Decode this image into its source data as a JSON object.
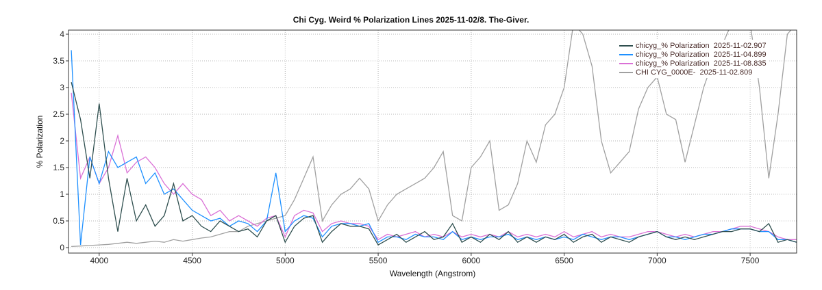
{
  "chart_data": {
    "type": "line",
    "title": "Chi Cyg. Weird % Polarization Lines 2025-11-02/8. The-Giver.",
    "xlabel": "Wavelength (Angstrom)",
    "ylabel": "% Polarization",
    "xlim": [
      3835,
      7750
    ],
    "ylim": [
      0,
      4
    ],
    "grid": true,
    "legend_position": "top-right",
    "x_ticks": [
      "4000",
      "4500",
      "5000",
      "5500",
      "6000",
      "6500",
      "7000",
      "7500"
    ],
    "y_ticks": [
      "0",
      "0.5",
      "1",
      "1.5",
      "2",
      "2.5",
      "3",
      "3.5",
      "4"
    ],
    "x": [
      3850,
      3900,
      3950,
      4000,
      4050,
      4100,
      4150,
      4200,
      4250,
      4300,
      4350,
      4400,
      4450,
      4500,
      4550,
      4600,
      4650,
      4700,
      4750,
      4800,
      4850,
      4900,
      4950,
      5000,
      5050,
      5100,
      5150,
      5200,
      5250,
      5300,
      5350,
      5400,
      5450,
      5500,
      5550,
      5600,
      5650,
      5700,
      5750,
      5800,
      5850,
      5900,
      5950,
      6000,
      6050,
      6100,
      6150,
      6200,
      6250,
      6300,
      6350,
      6400,
      6450,
      6500,
      6550,
      6600,
      6650,
      6700,
      6750,
      6800,
      6850,
      6900,
      6950,
      7000,
      7050,
      7100,
      7150,
      7200,
      7250,
      7300,
      7350,
      7400,
      7450,
      7500,
      7550,
      7600,
      7650,
      7700,
      7750
    ],
    "series": [
      {
        "name": "chicyg_% Polarization  2025-11-02.907",
        "color": "#2f4f4f",
        "values": [
          3.1,
          2.4,
          1.3,
          2.7,
          1.3,
          0.3,
          1.3,
          0.5,
          0.8,
          0.4,
          0.6,
          1.2,
          0.5,
          0.6,
          0.4,
          0.3,
          0.5,
          0.4,
          0.3,
          0.35,
          0.2,
          0.5,
          0.6,
          0.1,
          0.4,
          0.55,
          0.6,
          0.1,
          0.3,
          0.45,
          0.4,
          0.4,
          0.35,
          0.05,
          0.15,
          0.25,
          0.1,
          0.2,
          0.3,
          0.15,
          0.2,
          0.45,
          0.1,
          0.2,
          0.1,
          0.25,
          0.15,
          0.3,
          0.1,
          0.2,
          0.1,
          0.2,
          0.15,
          0.25,
          0.1,
          0.2,
          0.25,
          0.1,
          0.2,
          0.15,
          0.1,
          0.2,
          0.25,
          0.3,
          0.2,
          0.15,
          0.2,
          0.15,
          0.2,
          0.25,
          0.3,
          0.3,
          0.35,
          0.35,
          0.3,
          0.45,
          0.1,
          0.15,
          0.1
        ]
      },
      {
        "name": "chicyg_% Polarization  2025-11-04.899",
        "color": "#1e90ff",
        "values": [
          3.7,
          0.05,
          1.7,
          1.2,
          1.8,
          1.5,
          1.6,
          1.7,
          1.2,
          1.4,
          1.0,
          1.1,
          0.9,
          0.7,
          0.6,
          0.5,
          0.55,
          0.4,
          0.5,
          0.45,
          0.3,
          0.5,
          1.4,
          0.3,
          0.5,
          0.6,
          0.55,
          0.2,
          0.4,
          0.45,
          0.45,
          0.4,
          0.45,
          0.1,
          0.2,
          0.2,
          0.15,
          0.25,
          0.2,
          0.2,
          0.15,
          0.3,
          0.15,
          0.2,
          0.15,
          0.2,
          0.2,
          0.25,
          0.15,
          0.2,
          0.15,
          0.2,
          0.15,
          0.2,
          0.15,
          0.25,
          0.2,
          0.15,
          0.2,
          0.2,
          0.15,
          0.2,
          0.25,
          0.3,
          0.2,
          0.2,
          0.15,
          0.2,
          0.25,
          0.25,
          0.3,
          0.35,
          0.35,
          0.35,
          0.3,
          0.3,
          0.15,
          0.15,
          0.1
        ]
      },
      {
        "name": "chicyg_% Polarization  2025-11-08.835",
        "color": "#da70d6",
        "values": [
          2.9,
          1.3,
          1.7,
          1.2,
          1.5,
          2.1,
          1.4,
          1.6,
          1.7,
          1.5,
          1.2,
          1.0,
          1.2,
          1.0,
          0.9,
          0.6,
          0.7,
          0.5,
          0.6,
          0.5,
          0.4,
          0.55,
          0.6,
          0.2,
          0.6,
          0.7,
          0.65,
          0.3,
          0.45,
          0.5,
          0.45,
          0.45,
          0.4,
          0.15,
          0.25,
          0.2,
          0.25,
          0.3,
          0.2,
          0.25,
          0.2,
          0.3,
          0.2,
          0.25,
          0.2,
          0.25,
          0.2,
          0.3,
          0.2,
          0.25,
          0.2,
          0.25,
          0.2,
          0.3,
          0.2,
          0.25,
          0.3,
          0.2,
          0.25,
          0.2,
          0.2,
          0.25,
          0.3,
          0.3,
          0.25,
          0.2,
          0.25,
          0.2,
          0.25,
          0.3,
          0.3,
          0.35,
          0.4,
          0.4,
          0.35,
          0.3,
          0.2,
          0.15,
          0.15
        ]
      },
      {
        "name": "CHI CYG_0000E-  2025-11-02.809",
        "color": "#a0a0a0",
        "values": [
          0.02,
          0.03,
          0.04,
          0.05,
          0.06,
          0.08,
          0.1,
          0.08,
          0.1,
          0.12,
          0.1,
          0.15,
          0.12,
          0.15,
          0.18,
          0.2,
          0.25,
          0.3,
          0.3,
          0.4,
          0.45,
          0.5,
          0.55,
          0.6,
          0.9,
          1.3,
          1.7,
          0.5,
          0.8,
          1.0,
          1.1,
          1.3,
          1.1,
          0.5,
          0.8,
          1.0,
          1.1,
          1.2,
          1.3,
          1.5,
          1.8,
          0.6,
          0.5,
          1.5,
          1.7,
          2.0,
          0.7,
          0.8,
          1.2,
          2.0,
          1.6,
          2.3,
          2.5,
          3.0,
          4.2,
          4.0,
          3.4,
          2.0,
          1.4,
          1.6,
          1.8,
          2.6,
          3.0,
          3.2,
          2.5,
          2.4,
          1.6,
          2.3,
          3.0,
          3.5,
          3.8,
          4.2,
          4.2,
          4.2,
          3.0,
          1.3,
          2.5,
          4.0,
          4.2
        ]
      }
    ]
  }
}
